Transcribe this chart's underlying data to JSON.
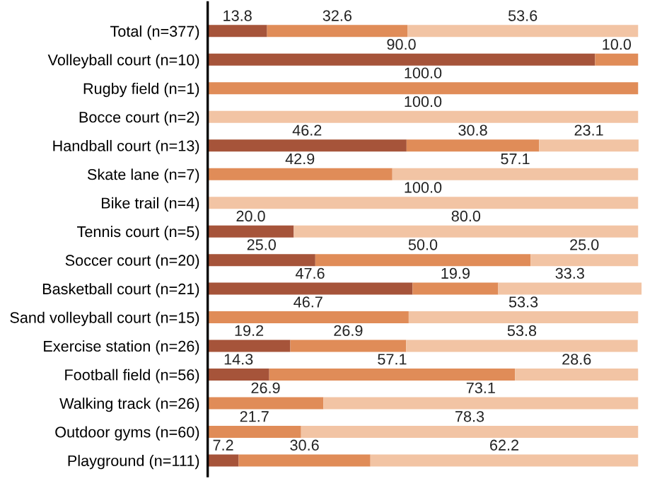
{
  "chart_data": {
    "type": "bar",
    "orientation": "horizontal",
    "stacked": true,
    "data_labels": true,
    "grid": false,
    "legend": false,
    "tick_labels": "y",
    "xlim": [
      0,
      101
    ],
    "categories": [
      "Total (n=377)",
      "Volleyball court (n=10)",
      "Rugby field (n=1)",
      "Bocce court (n=2)",
      "Handball court (n=13)",
      "Skate lane (n=7)",
      "Bike trail (n=4)",
      "Tennis court (n=5)",
      "Soccer court (n=20)",
      "Basketball court (n=21)",
      "Sand volleyball court (n=15)",
      "Exercise station (n=26)",
      "Football field (n=56)",
      "Walking track (n=26)",
      "Outdoor gyms (n=60)",
      "Playground (n=111)"
    ],
    "series": [
      {
        "color": "#a6543a",
        "values": [
          13.8,
          90.0,
          null,
          null,
          46.2,
          null,
          null,
          20.0,
          25.0,
          47.6,
          null,
          19.2,
          14.3,
          null,
          null,
          7.2
        ],
        "value_labels": [
          "13.8",
          "90.0",
          null,
          null,
          "46.2",
          null,
          null,
          "20.0",
          "25.0",
          "47.6",
          null,
          "19.2",
          "14.3",
          null,
          null,
          "7.2"
        ]
      },
      {
        "color": "#e08c58",
        "values": [
          32.6,
          10.0,
          100.0,
          null,
          30.8,
          42.9,
          null,
          null,
          50.0,
          19.9,
          46.7,
          26.9,
          57.1,
          26.9,
          21.7,
          30.6
        ],
        "value_labels": [
          "32.6",
          "10.0",
          "100.0",
          null,
          "30.8",
          "42.9",
          null,
          null,
          "50.0",
          "19.9",
          "46.7",
          "26.9",
          "57.1",
          "26.9",
          "21.7",
          "30.6"
        ]
      },
      {
        "color": "#f2c4a4",
        "values": [
          53.6,
          null,
          null,
          100.0,
          23.1,
          57.1,
          100.0,
          80.0,
          25.0,
          33.3,
          53.3,
          53.8,
          28.6,
          73.1,
          78.3,
          62.2
        ],
        "value_labels": [
          "53.6",
          null,
          null,
          "100.0",
          "23.1",
          "57.1",
          "100.0",
          "80.0",
          "25.0",
          "33.3",
          "53.3",
          "53.8",
          "28.6",
          "73.1",
          "78.3",
          "62.2"
        ]
      }
    ]
  }
}
